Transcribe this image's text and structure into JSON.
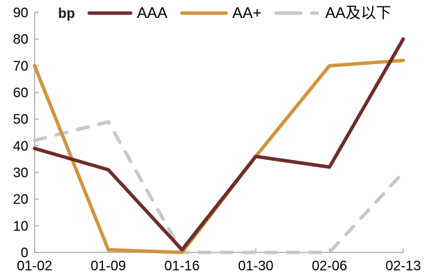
{
  "chart_data": {
    "type": "line",
    "title": "",
    "ylabel": "bp",
    "xlabel": "",
    "categories": [
      "01-02",
      "01-09",
      "01-16",
      "01-30",
      "02-06",
      "02-13"
    ],
    "series": [
      {
        "name": "AAA",
        "color": "#6E2C2B",
        "style": "solid",
        "values": [
          39,
          31,
          1,
          36,
          32,
          80
        ]
      },
      {
        "name": "AA+",
        "color": "#D0943E",
        "style": "solid",
        "values": [
          70,
          1,
          0,
          36,
          70,
          72
        ]
      },
      {
        "name": "AA及以下",
        "color": "#C8C8C8",
        "style": "dashed",
        "values": [
          42,
          49,
          0,
          0,
          0,
          30
        ]
      }
    ],
    "ylim": [
      0,
      90
    ],
    "ytick_step": 10,
    "yticks": [
      0,
      10,
      20,
      30,
      40,
      50,
      60,
      70,
      80,
      90
    ],
    "grid": false,
    "legend_position": "top",
    "axis_color": "#A9A9A9",
    "text_color": "#000000",
    "background": "#FFFFFF"
  }
}
